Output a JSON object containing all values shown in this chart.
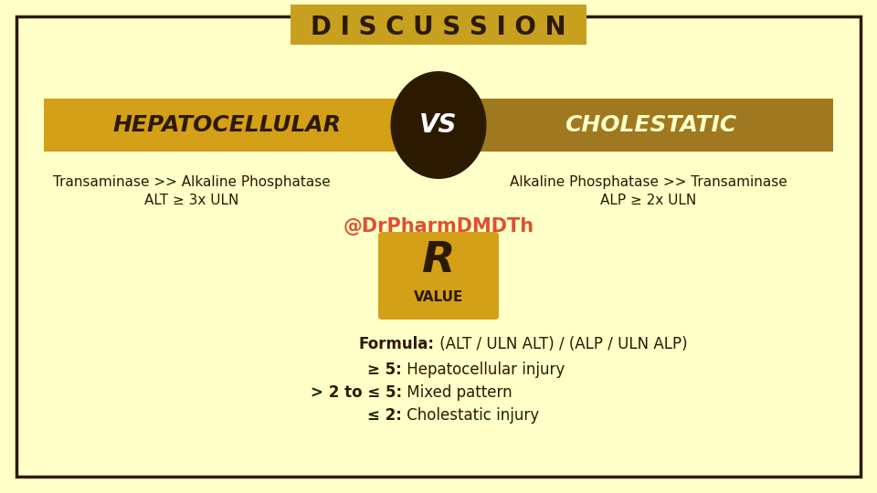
{
  "bg_color": "#FFFFC8",
  "border_color": "#2C1A00",
  "title": "D I S C U S S I O N",
  "title_bg": "#C8A020",
  "title_color": "#2C1A00",
  "hepa_label": "HEPATOCELLULAR",
  "chol_label": "CHOLESTATIC",
  "vs_label": "VS",
  "bar_color_left": "#D4A017",
  "bar_color_right": "#A07820",
  "vs_circle_color": "#2C1A00",
  "vs_text_color": "#FFFFFF",
  "hepa_sub1": "Transaminase >> Alkaline Phosphatase",
  "hepa_sub2": "ALT ≥ 3x ULN",
  "chol_sub1": "Alkaline Phosphatase >> Transaminase",
  "chol_sub2": "ALP ≥ 2x ULN",
  "watermark": "@DrPharmDMDTh",
  "watermark_color": "#E05030",
  "r_box_color": "#D4A017",
  "r_label": "R",
  "r_sublabel": "VALUE",
  "formula_bold": "Formula:",
  "formula_rest": " (ALT / ULN ALT) / (ALP / ULN ALP)",
  "bullet1_bold": "≥ 5:",
  "bullet1_rest": " Hepatocellular injury",
  "bullet2_bold": "> 2 to ≤ 5:",
  "bullet2_rest": " Mixed pattern",
  "bullet3_bold": "≤ 2:",
  "bullet3_rest": " Cholestatic injury",
  "dark_color": "#2C1A00",
  "light_color": "#FFFFC8"
}
